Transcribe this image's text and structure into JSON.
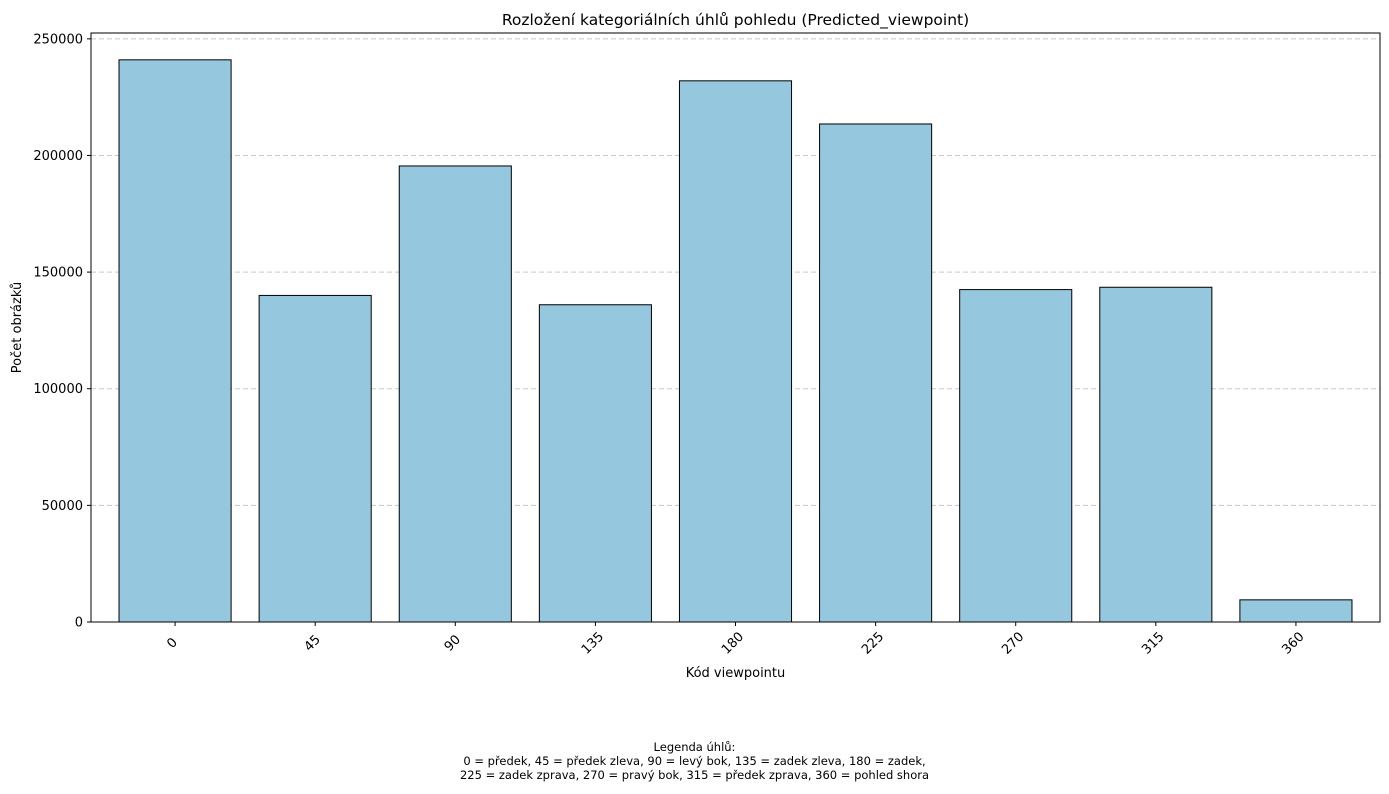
{
  "chart_data": {
    "type": "bar",
    "title": "Rozložení kategoriálních úhlů pohledu (Predicted_viewpoint)",
    "xlabel": "Kód viewpointu",
    "ylabel": "Počet obrázků",
    "categories": [
      "0",
      "45",
      "90",
      "135",
      "180",
      "225",
      "270",
      "315",
      "360"
    ],
    "values": [
      241000,
      140000,
      195500,
      136000,
      232000,
      213500,
      142500,
      143500,
      9500
    ],
    "ylim": [
      0,
      252500
    ],
    "yticks": [
      0,
      50000,
      100000,
      150000,
      200000,
      250000
    ],
    "ytick_labels": [
      "0",
      "50000",
      "100000",
      "150000",
      "200000",
      "250000"
    ],
    "xtick_rotation_deg": 45,
    "grid": "y-dashed",
    "bar_color": "#95c8de",
    "bar_edge_color": "#000000",
    "grid_color": "#c8c8c8"
  },
  "note": {
    "lines": [
      "Legenda úhlů:",
      "0 = předek, 45 = předek zleva, 90 = levý bok, 135 = zadek zleva, 180 = zadek,",
      "225 = zadek zprava, 270 = pravý bok, 315 = předek zprava, 360 = pohled shora"
    ]
  }
}
